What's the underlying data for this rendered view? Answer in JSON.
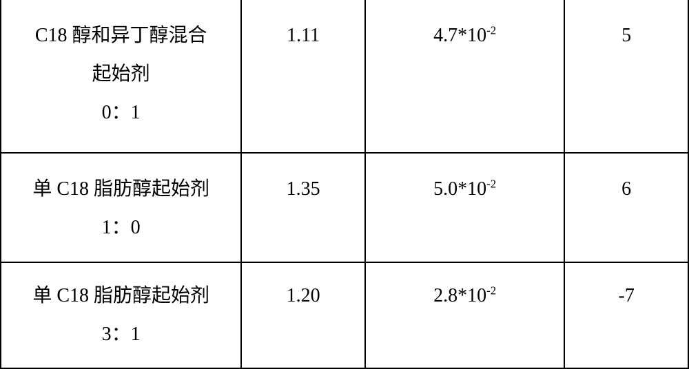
{
  "table": {
    "border_color": "#000000",
    "background_color": "#ffffff",
    "font_family": "SimSun",
    "font_size_pt": 21,
    "columns": [
      {
        "key": "desc",
        "width_pct": 35,
        "align": "center"
      },
      {
        "key": "val1",
        "width_pct": 18,
        "align": "center"
      },
      {
        "key": "val2",
        "width_pct": 29,
        "align": "center"
      },
      {
        "key": "val3",
        "width_pct": 18,
        "align": "center"
      }
    ],
    "rows": [
      {
        "desc_line1": "C18 醇和异丁醇混合",
        "desc_line2": "起始剂",
        "desc_line3": "0：1",
        "val1": "1.11",
        "val2_base": "4.7*10",
        "val2_exp": "-2",
        "val3": "5"
      },
      {
        "desc_line1": "单 C18 脂肪醇起始剂",
        "desc_line2": "1：0",
        "desc_line3": "",
        "val1": "1.35",
        "val2_base": "5.0*10",
        "val2_exp": "-2",
        "val3": "6"
      },
      {
        "desc_line1": "单 C18 脂肪醇起始剂",
        "desc_line2": "3：1",
        "desc_line3": "",
        "val1": "1.20",
        "val2_base": "2.8*10",
        "val2_exp": "-2",
        "val3": "-7"
      }
    ]
  }
}
